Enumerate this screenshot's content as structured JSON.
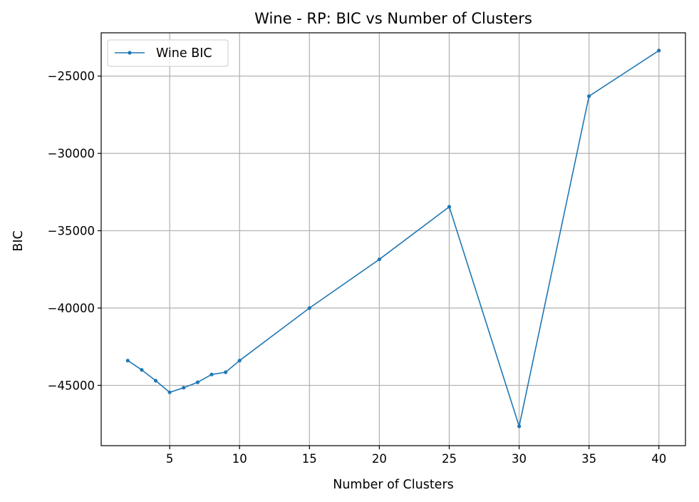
{
  "chart_data": {
    "type": "line",
    "title": "Wine - RP: BIC vs Number of Clusters",
    "xlabel": "Number of Clusters",
    "ylabel": "BIC",
    "xlim": [
      0.1,
      41.9
    ],
    "ylim": [
      -48900,
      -22200
    ],
    "xticks": [
      5,
      10,
      15,
      20,
      25,
      30,
      35,
      40
    ],
    "yticks": [
      -45000,
      -40000,
      -35000,
      -30000,
      -25000
    ],
    "xtick_labels": [
      "5",
      "10",
      "15",
      "20",
      "25",
      "30",
      "35",
      "40"
    ],
    "ytick_labels": [
      "−45000",
      "−40000",
      "−35000",
      "−30000",
      "−25000"
    ],
    "grid": true,
    "legend_position": "upper-left",
    "series": [
      {
        "name": "Wine BIC",
        "color": "#1f77b4",
        "marker": "dot",
        "x": [
          2,
          3,
          4,
          5,
          6,
          7,
          8,
          9,
          10,
          15,
          20,
          25,
          30,
          35,
          40
        ],
        "y": [
          -43400,
          -44000,
          -44700,
          -45450,
          -45150,
          -44800,
          -44300,
          -44150,
          -43400,
          -40000,
          -36850,
          -33450,
          -47650,
          -26300,
          -23350
        ]
      }
    ]
  }
}
